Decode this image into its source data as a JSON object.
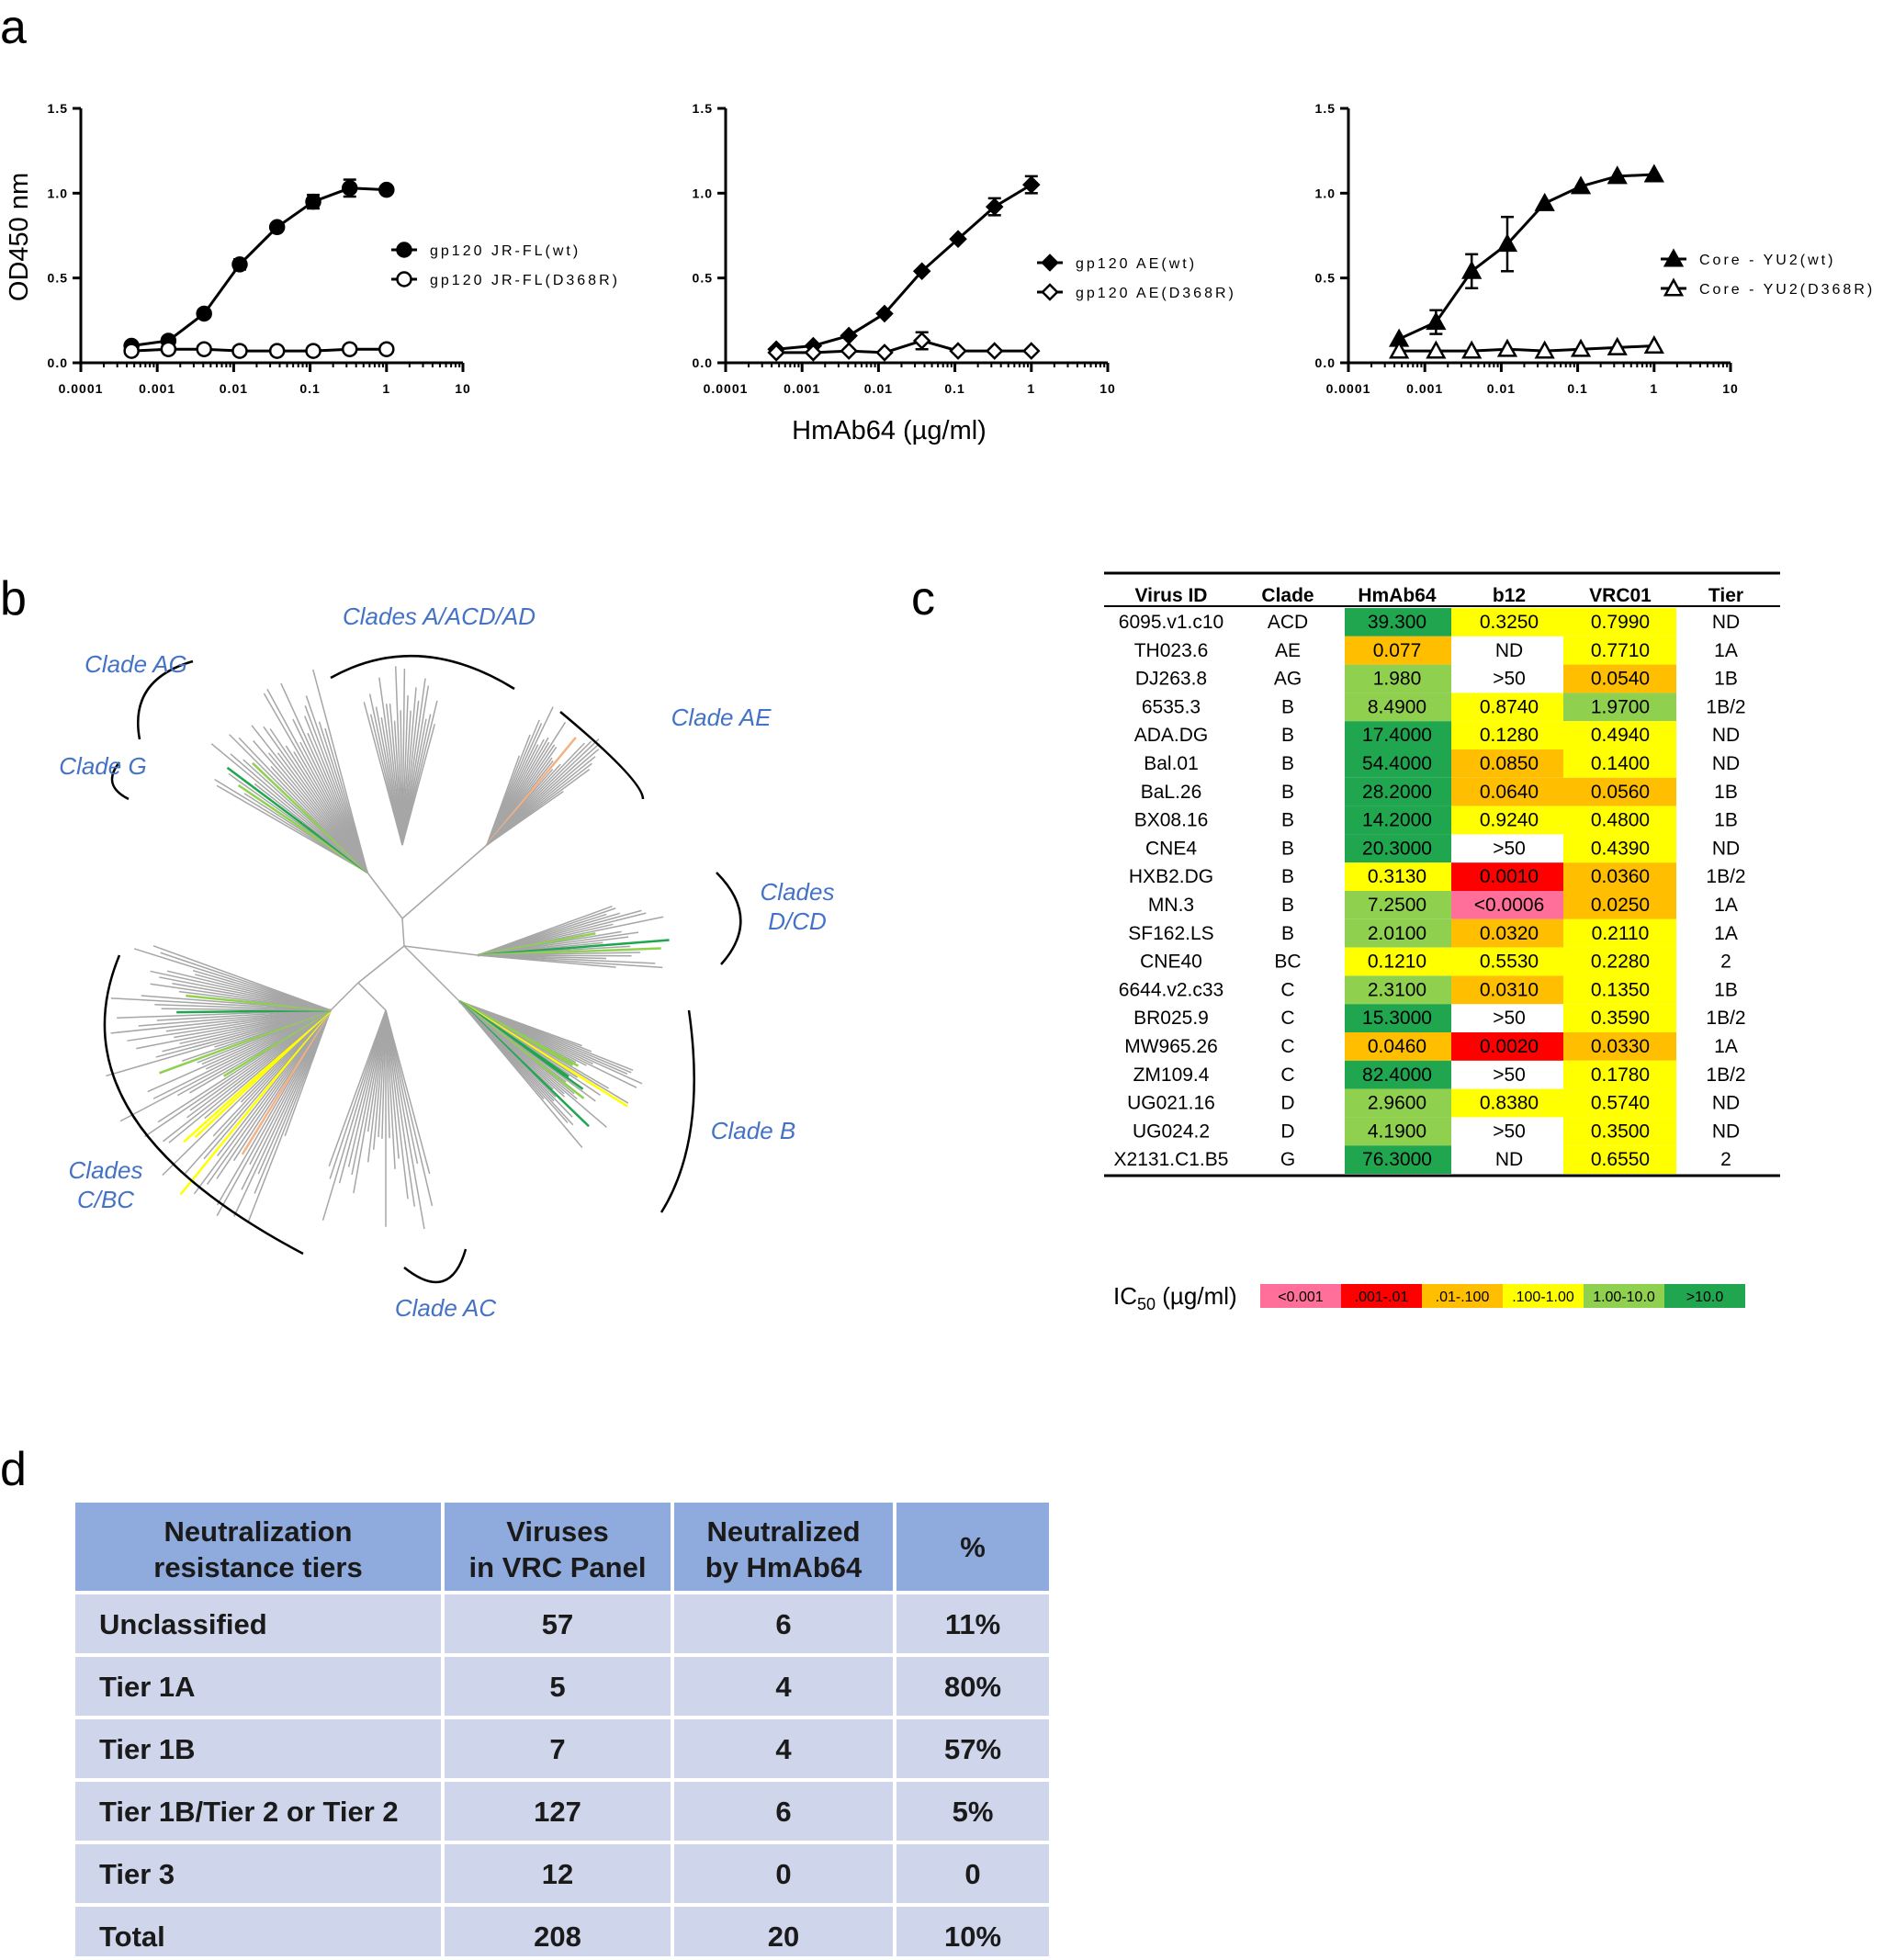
{
  "panel_letters": {
    "a": "a",
    "b": "b",
    "c": "c",
    "d": "d"
  },
  "chart_data": [
    {
      "type": "line",
      "xscale": "log",
      "xlim": [
        0.0001,
        10
      ],
      "ylim": [
        0,
        1.5
      ],
      "xticks": [
        "0.0001",
        "0.001",
        "0.01",
        "0.1",
        "1",
        "10"
      ],
      "yticks": [
        "0.0",
        "0.5",
        "1.0",
        "1.5"
      ],
      "ylabel": "OD450 nm",
      "xlabel": "",
      "series": [
        {
          "name": "gp120 JR-FL(wt)",
          "marker": "circle-filled",
          "x": [
            0.00046,
            0.0014,
            0.0041,
            0.012,
            0.037,
            0.11,
            0.33,
            1.0
          ],
          "y": [
            0.1,
            0.13,
            0.29,
            0.58,
            0.8,
            0.95,
            1.03,
            1.02
          ],
          "err": [
            0,
            0,
            0,
            0.03,
            0,
            0.04,
            0.05,
            0
          ]
        },
        {
          "name": "gp120 JR-FL(D368R)",
          "marker": "circle-open",
          "x": [
            0.00046,
            0.0014,
            0.0041,
            0.012,
            0.037,
            0.11,
            0.33,
            1.0
          ],
          "y": [
            0.07,
            0.08,
            0.08,
            0.07,
            0.07,
            0.07,
            0.08,
            0.08
          ],
          "err": [
            0,
            0,
            0,
            0,
            0,
            0,
            0,
            0
          ]
        }
      ]
    },
    {
      "type": "line",
      "xscale": "log",
      "xlim": [
        0.0001,
        10
      ],
      "ylim": [
        0,
        1.5
      ],
      "xticks": [
        "0.0001",
        "0.001",
        "0.01",
        "0.1",
        "1",
        "10"
      ],
      "yticks": [
        "0.0",
        "0.5",
        "1.0",
        "1.5"
      ],
      "xlabel": "HmAb64 (µg/ml)",
      "ylabel": "",
      "series": [
        {
          "name": "gp120 AE(wt)",
          "marker": "diamond-filled",
          "x": [
            0.00046,
            0.0014,
            0.0041,
            0.012,
            0.037,
            0.11,
            0.33,
            1.0
          ],
          "y": [
            0.08,
            0.1,
            0.16,
            0.29,
            0.54,
            0.73,
            0.92,
            1.05
          ],
          "err": [
            0,
            0,
            0,
            0,
            0,
            0,
            0.05,
            0.05
          ]
        },
        {
          "name": "gp120 AE(D368R)",
          "marker": "diamond-open",
          "x": [
            0.00046,
            0.0014,
            0.0041,
            0.012,
            0.037,
            0.11,
            0.33,
            1.0
          ],
          "y": [
            0.06,
            0.06,
            0.07,
            0.06,
            0.13,
            0.07,
            0.07,
            0.07
          ],
          "err": [
            0,
            0,
            0,
            0,
            0.05,
            0,
            0,
            0
          ]
        }
      ]
    },
    {
      "type": "line",
      "xscale": "log",
      "xlim": [
        0.0001,
        10
      ],
      "ylim": [
        0,
        1.5
      ],
      "xticks": [
        "0.0001",
        "0.001",
        "0.01",
        "0.1",
        "1",
        "10"
      ],
      "yticks": [
        "0.0",
        "0.5",
        "1.0",
        "1.5"
      ],
      "xlabel": "",
      "ylabel": "",
      "series": [
        {
          "name": "Core - YU2(wt)",
          "marker": "triangle-filled",
          "x": [
            0.00046,
            0.0014,
            0.0041,
            0.012,
            0.037,
            0.11,
            0.33,
            1.0
          ],
          "y": [
            0.14,
            0.24,
            0.54,
            0.7,
            0.94,
            1.04,
            1.1,
            1.11
          ],
          "err": [
            0,
            0.07,
            0.1,
            0.16,
            0,
            0,
            0,
            0
          ]
        },
        {
          "name": "Core - YU2(D368R)",
          "marker": "triangle-open",
          "x": [
            0.00046,
            0.0014,
            0.0041,
            0.012,
            0.037,
            0.11,
            0.33,
            1.0
          ],
          "y": [
            0.07,
            0.07,
            0.07,
            0.08,
            0.07,
            0.08,
            0.09,
            0.1
          ],
          "err": [
            0,
            0,
            0,
            0,
            0,
            0,
            0,
            0
          ]
        }
      ]
    },
    {
      "type": "table",
      "columns": [
        "Virus ID",
        "Clade",
        "HmAb64",
        "b12",
        "VRC01",
        "Tier"
      ],
      "rows": [
        [
          "6095.v1.c10",
          "ACD",
          "39.300",
          "0.3250",
          "0.7990",
          "ND"
        ],
        [
          "TH023.6",
          "AE",
          "0.077",
          "ND",
          "0.7710",
          "1A"
        ],
        [
          "DJ263.8",
          "AG",
          "1.980",
          ">50",
          "0.0540",
          "1B"
        ],
        [
          "6535.3",
          "B",
          "8.4900",
          "0.8740",
          "1.9700",
          "1B/2"
        ],
        [
          "ADA.DG",
          "B",
          "17.4000",
          "0.1280",
          "0.4940",
          "ND"
        ],
        [
          "Bal.01",
          "B",
          "54.4000",
          "0.0850",
          "0.1400",
          "ND"
        ],
        [
          "BaL.26",
          "B",
          "28.2000",
          "0.0640",
          "0.0560",
          "1B"
        ],
        [
          "BX08.16",
          "B",
          "14.2000",
          "0.9240",
          "0.4800",
          "1B"
        ],
        [
          "CNE4",
          "B",
          "20.3000",
          ">50",
          "0.4390",
          "ND"
        ],
        [
          "HXB2.DG",
          "B",
          "0.3130",
          "0.0010",
          "0.0360",
          "1B/2"
        ],
        [
          "MN.3",
          "B",
          "7.2500",
          "<0.0006",
          "0.0250",
          "1A"
        ],
        [
          "SF162.LS",
          "B",
          "2.0100",
          "0.0320",
          "0.2110",
          "1A"
        ],
        [
          "CNE40",
          "BC",
          "0.1210",
          "0.5530",
          "0.2280",
          "2"
        ],
        [
          "6644.v2.c33",
          "C",
          "2.3100",
          "0.0310",
          "0.1350",
          "1B"
        ],
        [
          "BR025.9",
          "C",
          "15.3000",
          ">50",
          "0.3590",
          "1B/2"
        ],
        [
          "MW965.26",
          "C",
          "0.0460",
          "0.0020",
          "0.0330",
          "1A"
        ],
        [
          "ZM109.4",
          "C",
          "82.4000",
          ">50",
          "0.1780",
          "1B/2"
        ],
        [
          "UG021.16",
          "D",
          "2.9600",
          "0.8380",
          "0.5740",
          "ND"
        ],
        [
          "UG024.2",
          "D",
          "4.1900",
          ">50",
          "0.3500",
          "ND"
        ],
        [
          "X2131.C1.B5",
          "G",
          "76.3000",
          "ND",
          "0.6550",
          "2"
        ]
      ],
      "cell_colors": [
        [
          "",
          "",
          "#1fa64e",
          "#ffff00",
          "#ffff00",
          ""
        ],
        [
          "",
          "",
          "#ffbf00",
          "",
          "#ffff00",
          ""
        ],
        [
          "",
          "",
          "#8fd14f",
          "",
          "#ffbf00",
          ""
        ],
        [
          "",
          "",
          "#8fd14f",
          "#ffff00",
          "#8fd14f",
          ""
        ],
        [
          "",
          "",
          "#1fa64e",
          "#ffff00",
          "#ffff00",
          ""
        ],
        [
          "",
          "",
          "#1fa64e",
          "#ffbf00",
          "#ffff00",
          ""
        ],
        [
          "",
          "",
          "#1fa64e",
          "#ffbf00",
          "#ffbf00",
          ""
        ],
        [
          "",
          "",
          "#1fa64e",
          "#ffff00",
          "#ffff00",
          ""
        ],
        [
          "",
          "",
          "#1fa64e",
          "",
          "#ffff00",
          ""
        ],
        [
          "",
          "",
          "#ffff00",
          "#ff0000",
          "#ffbf00",
          ""
        ],
        [
          "",
          "",
          "#8fd14f",
          "#ff6f9a",
          "#ffbf00",
          ""
        ],
        [
          "",
          "",
          "#8fd14f",
          "#ffbf00",
          "#ffff00",
          ""
        ],
        [
          "",
          "",
          "#ffff00",
          "#ffff00",
          "#ffff00",
          ""
        ],
        [
          "",
          "",
          "#8fd14f",
          "#ffbf00",
          "#ffff00",
          ""
        ],
        [
          "",
          "",
          "#1fa64e",
          "",
          "#ffff00",
          ""
        ],
        [
          "",
          "",
          "#ffbf00",
          "#ff0000",
          "#ffbf00",
          ""
        ],
        [
          "",
          "",
          "#1fa64e",
          "",
          "#ffff00",
          ""
        ],
        [
          "",
          "",
          "#8fd14f",
          "#ffff00",
          "#ffff00",
          ""
        ],
        [
          "",
          "",
          "#8fd14f",
          "",
          "#ffff00",
          ""
        ],
        [
          "",
          "",
          "#1fa64e",
          "",
          "#ffff00",
          ""
        ]
      ],
      "legend": {
        "label_main": "IC",
        "label_sub": "50",
        "label_unit": " (µg/ml)",
        "bins": [
          {
            "label": "<0.001",
            "color": "#ff6f9a"
          },
          {
            "label": ".001-.01",
            "color": "#ff0000"
          },
          {
            "label": ".01-.100",
            "color": "#ffbf00"
          },
          {
            "label": ".100-1.00",
            "color": "#ffff00"
          },
          {
            "label": "1.00-10.0",
            "color": "#8fd14f"
          },
          {
            "label": ">10.0",
            "color": "#1fa64e"
          }
        ]
      }
    },
    {
      "type": "table",
      "columns": [
        [
          "Neutralization",
          "resistance tiers"
        ],
        [
          "Viruses",
          "in VRC Panel"
        ],
        [
          "Neutralized",
          "by HmAb64"
        ],
        [
          "%"
        ]
      ],
      "rows": [
        [
          "Unclassified",
          "57",
          "6",
          "11%"
        ],
        [
          "Tier 1A",
          "5",
          "4",
          "80%"
        ],
        [
          "Tier 1B",
          "7",
          "4",
          "57%"
        ],
        [
          "Tier 1B/Tier 2 or Tier 2",
          "127",
          "6",
          "5%"
        ],
        [
          "Tier 3",
          "12",
          "0",
          "0"
        ],
        [
          "Total",
          "208",
          "20",
          "10%"
        ]
      ],
      "header_color": "#8faadc",
      "row_color": "#cfd5ea"
    }
  ],
  "tree": {
    "clade_labels": [
      [
        "Clades A/ACD/AD"
      ],
      [
        "Clade AG"
      ],
      [
        "Clade AE"
      ],
      [
        "Clade G"
      ],
      [
        "Clades",
        "D/CD"
      ],
      [
        "Clade B"
      ],
      [
        "Clades",
        "C/BC"
      ],
      [
        "Clade AC"
      ]
    ],
    "branch_color": "#a6a6a6",
    "highlight_colors": [
      "#1fa64e",
      "#8fd14f",
      "#ffff00",
      "#f4b183"
    ]
  }
}
